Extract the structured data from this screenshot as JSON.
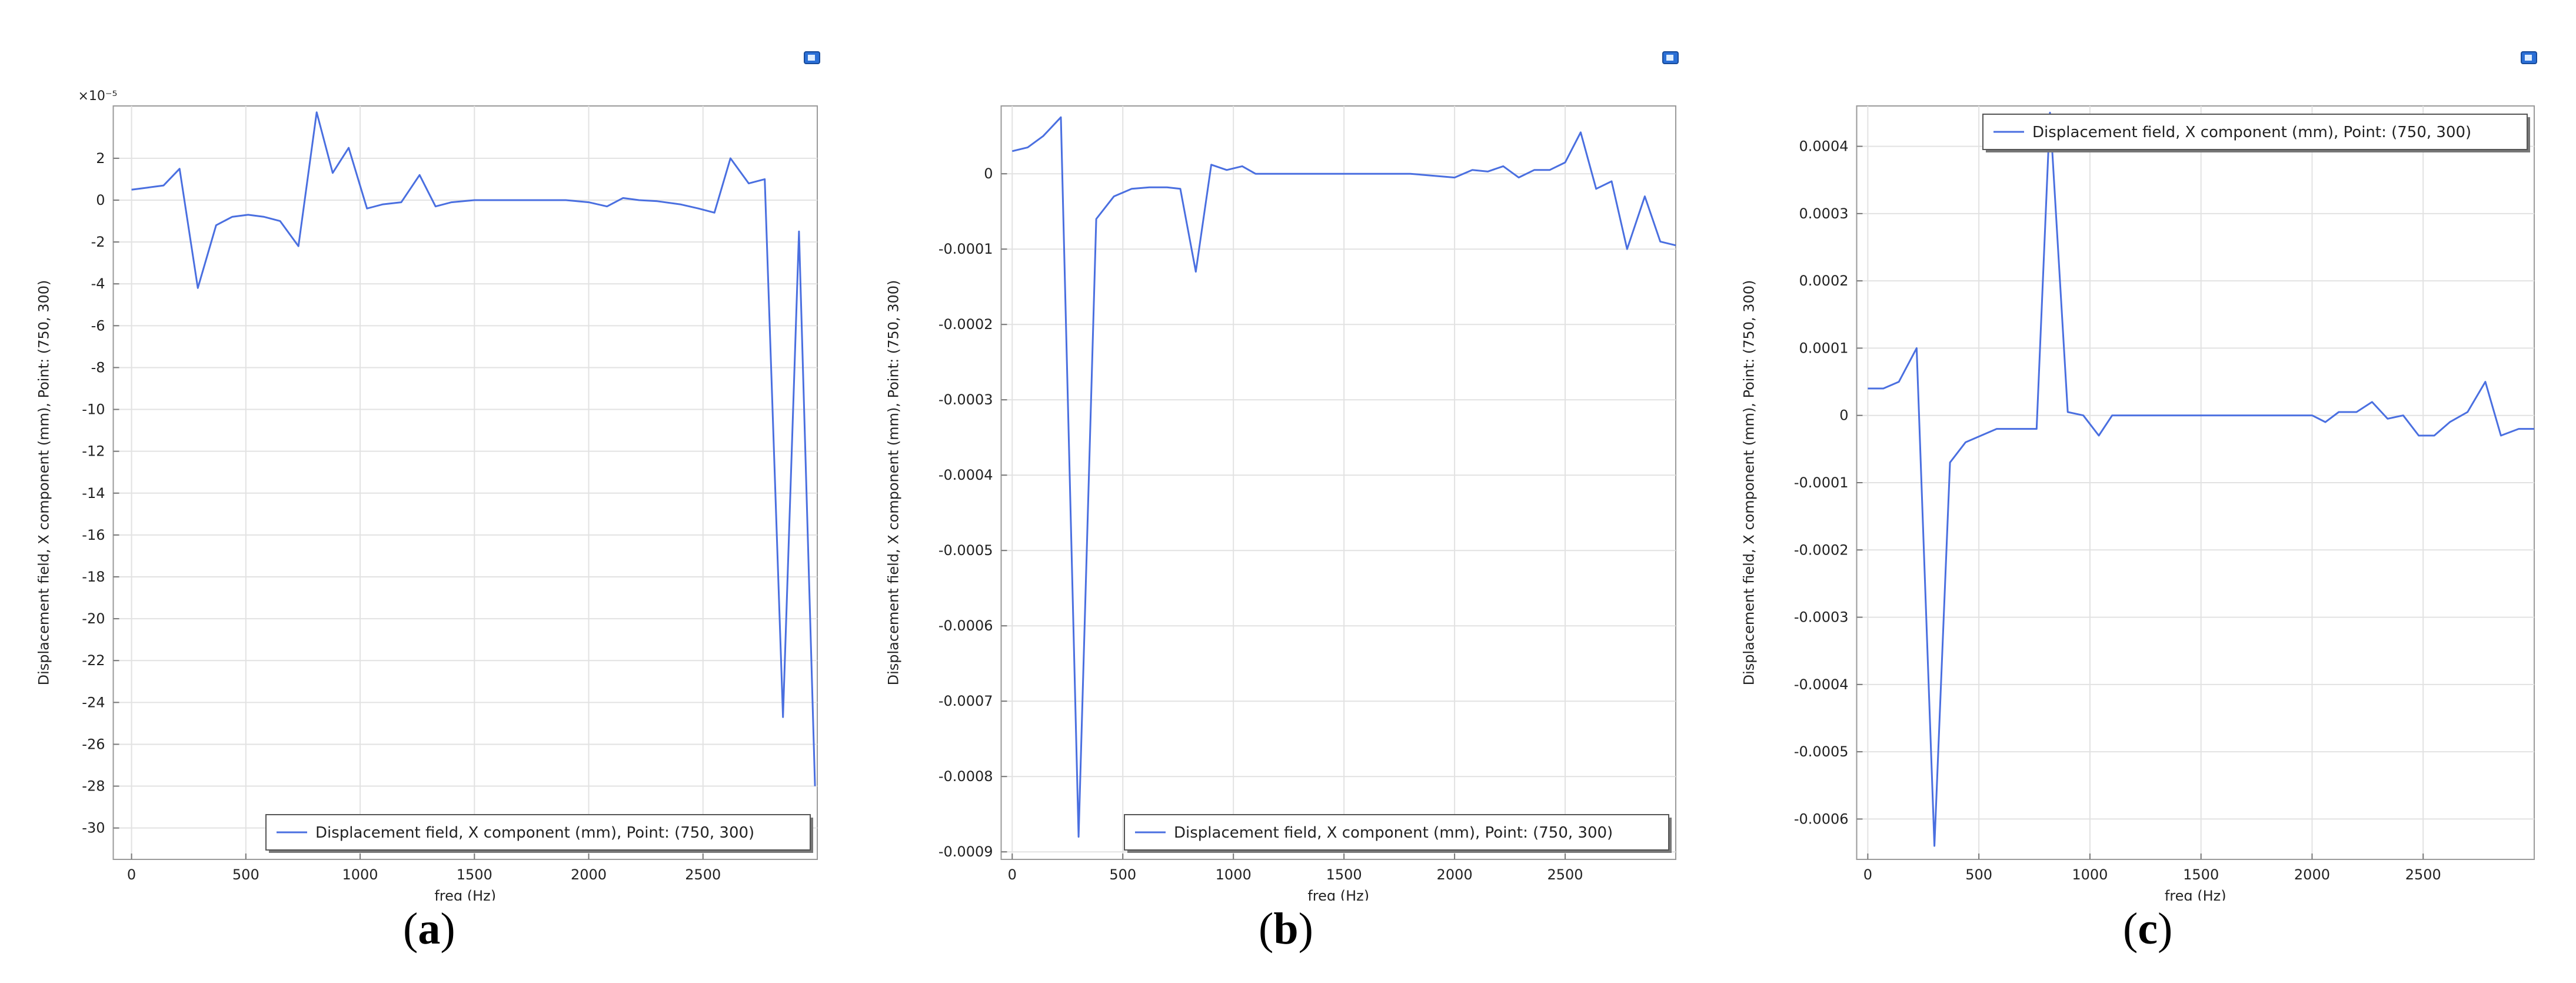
{
  "legend_label": "Displacement field, X component (mm), Point: (750, 300)",
  "captions": [
    {
      "open": "(",
      "letter": "a",
      "close": ")"
    },
    {
      "open": "(",
      "letter": "b",
      "close": ")"
    },
    {
      "open": "(",
      "letter": "c",
      "close": ")"
    }
  ],
  "chart_data": [
    {
      "type": "line",
      "xlabel": "freq (Hz)",
      "ylabel": "Displacement field, X component (mm), Point: (750, 300)",
      "multiplier_label": "×10⁻⁵",
      "xlim": [
        -80,
        3000
      ],
      "ylim": [
        -31.5,
        4.5
      ],
      "xticks": [
        0,
        500,
        1000,
        1500,
        2000,
        2500
      ],
      "xtick_labels": [
        "0",
        "500",
        "1000",
        "1500",
        "2000",
        "2500"
      ],
      "yticks": [
        2,
        0,
        -2,
        -4,
        -6,
        -8,
        -10,
        -12,
        -14,
        -16,
        -18,
        -20,
        -22,
        -24,
        -26,
        -28,
        -30
      ],
      "ytick_labels": [
        "2",
        "0",
        "-2",
        "-4",
        "-6",
        "-8",
        "-10",
        "-12",
        "-14",
        "-16",
        "-18",
        "-20",
        "-22",
        "-24",
        "-26",
        "-28",
        "-30"
      ],
      "grid": true,
      "legend_position": "bottom-right",
      "line_color": "#4a6fe0",
      "series": [
        {
          "x": [
            0,
            70,
            140,
            210,
            290,
            370,
            440,
            510,
            580,
            650,
            730,
            810,
            880,
            950,
            1030,
            1100,
            1180,
            1260,
            1330,
            1400,
            1500,
            1600,
            1700,
            1800,
            1900,
            2000,
            2080,
            2150,
            2220,
            2300,
            2400,
            2480,
            2550,
            2620,
            2700,
            2770,
            2850,
            2920,
            2990
          ],
          "y": [
            0.5,
            0.6,
            0.7,
            1.5,
            -4.2,
            -1.2,
            -0.8,
            -0.7,
            -0.8,
            -1.0,
            -2.2,
            4.2,
            1.3,
            2.5,
            -0.4,
            -0.2,
            -0.1,
            1.2,
            -0.3,
            -0.1,
            0,
            0,
            0,
            0,
            0,
            -0.1,
            -0.3,
            0.1,
            0,
            -0.05,
            -0.2,
            -0.4,
            -0.6,
            2.0,
            0.8,
            1.0,
            -24.7,
            -1.5,
            -28.0
          ]
        }
      ]
    },
    {
      "type": "line",
      "xlabel": "freq (Hz)",
      "ylabel": "Displacement field, X component (mm), Point: (750, 300)",
      "xlim": [
        -50,
        3000
      ],
      "ylim": [
        -0.00091,
        9e-05
      ],
      "xticks": [
        0,
        500,
        1000,
        1500,
        2000,
        2500
      ],
      "xtick_labels": [
        "0",
        "500",
        "1000",
        "1500",
        "2000",
        "2500"
      ],
      "yticks": [
        0,
        -0.0001,
        -0.0002,
        -0.0003,
        -0.0004,
        -0.0005,
        -0.0006,
        -0.0007,
        -0.0008,
        -0.0009
      ],
      "ytick_labels": [
        "0",
        "-0.0001",
        "-0.0002",
        "-0.0003",
        "-0.0004",
        "-0.0005",
        "-0.0006",
        "-0.0007",
        "-0.0008",
        "-0.0009"
      ],
      "grid": true,
      "legend_position": "bottom-right",
      "line_color": "#4a6fe0",
      "series": [
        {
          "x": [
            0,
            70,
            140,
            220,
            300,
            380,
            460,
            540,
            620,
            700,
            760,
            830,
            900,
            970,
            1040,
            1100,
            1200,
            1400,
            1600,
            1800,
            2000,
            2080,
            2150,
            2220,
            2290,
            2360,
            2430,
            2500,
            2570,
            2640,
            2710,
            2780,
            2860,
            2930,
            3000
          ],
          "y": [
            3e-05,
            3.5e-05,
            5e-05,
            7.5e-05,
            -0.00088,
            -6e-05,
            -3e-05,
            -2e-05,
            -1.8e-05,
            -1.8e-05,
            -2e-05,
            -0.00013,
            1.2e-05,
            5e-06,
            1e-05,
            0,
            0,
            0,
            0,
            0,
            -5e-06,
            5e-06,
            3e-06,
            1e-05,
            -5e-06,
            5e-06,
            5e-06,
            1.5e-05,
            5.5e-05,
            -2e-05,
            -1e-05,
            -0.0001,
            -3e-05,
            -9e-05,
            -9.5e-05
          ]
        }
      ]
    },
    {
      "type": "line",
      "xlabel": "freq (Hz)",
      "ylabel": "Displacement field, X component (mm), Point: (750, 300)",
      "xlim": [
        -50,
        3000
      ],
      "ylim": [
        -0.00066,
        0.00046
      ],
      "xticks": [
        0,
        500,
        1000,
        1500,
        2000,
        2500
      ],
      "xtick_labels": [
        "0",
        "500",
        "1000",
        "1500",
        "2000",
        "2500"
      ],
      "yticks": [
        0.0004,
        0.0003,
        0.0002,
        0.0001,
        0,
        -0.0001,
        -0.0002,
        -0.0003,
        -0.0004,
        -0.0005,
        -0.0006
      ],
      "ytick_labels": [
        "0.0004",
        "0.0003",
        "0.0002",
        "0.0001",
        "0",
        "-0.0001",
        "-0.0002",
        "-0.0003",
        "-0.0004",
        "-0.0005",
        "-0.0006"
      ],
      "grid": true,
      "legend_position": "top-right",
      "line_color": "#4a6fe0",
      "series": [
        {
          "x": [
            0,
            70,
            140,
            220,
            300,
            370,
            440,
            510,
            580,
            650,
            720,
            760,
            820,
            900,
            970,
            1040,
            1100,
            1200,
            1400,
            1600,
            1800,
            2000,
            2060,
            2120,
            2200,
            2270,
            2340,
            2410,
            2480,
            2550,
            2620,
            2700,
            2780,
            2850,
            2930,
            3000
          ],
          "y": [
            4e-05,
            4e-05,
            5e-05,
            0.0001,
            -0.00064,
            -7e-05,
            -4e-05,
            -3e-05,
            -2e-05,
            -2e-05,
            -2e-05,
            -2e-05,
            0.00045,
            5e-06,
            0,
            -3e-05,
            0,
            0,
            0,
            0,
            0,
            0,
            -1e-05,
            5e-06,
            5e-06,
            2e-05,
            -5e-06,
            0,
            -3e-05,
            -3e-05,
            -1e-05,
            5e-06,
            5e-05,
            -3e-05,
            -2e-05,
            -2e-05
          ]
        }
      ]
    }
  ]
}
